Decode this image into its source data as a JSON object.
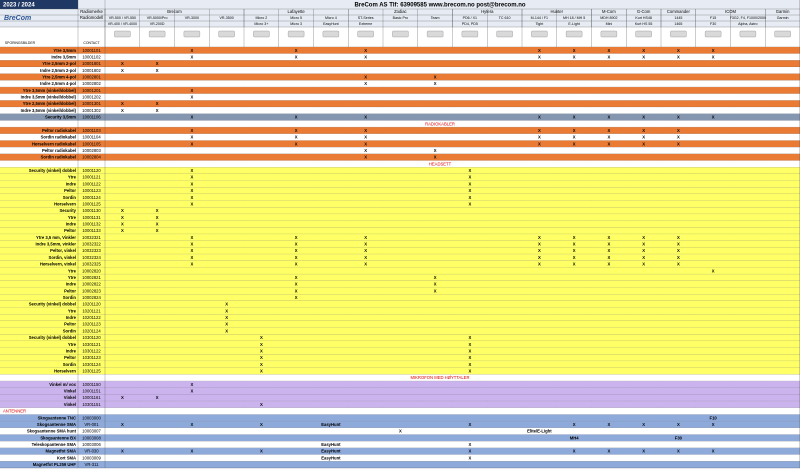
{
  "header": {
    "year": "2023 / 2024",
    "title": "BreCom AS  Tlf: 63909585  www.brecom.no  post@brecom.no",
    "brand_label": "Radiomerke",
    "model_label": "Radiomodell",
    "image_label": "SPORINGSBILDER",
    "contact_label": "CONTACT"
  },
  "brands": [
    {
      "name": "Brecom",
      "span": 4
    },
    {
      "name": "Lafayette",
      "span": 3
    },
    {
      "name": "Zodiac",
      "span": 3
    },
    {
      "name": "Hytera",
      "span": 2
    },
    {
      "name": "Hunter",
      "span": 2
    },
    {
      "name": "M-Com",
      "span": 1
    },
    {
      "name": "G-Com",
      "span": 1
    },
    {
      "name": "Commander",
      "span": 1
    },
    {
      "name": "ICOM",
      "span": 2
    },
    {
      "name": "Garmin",
      "span": 1
    }
  ],
  "models": [
    "VR-500 / VR-550",
    "VR-5000/Pro",
    "VR-3000",
    "VR-3500",
    "Micro 2",
    "Micro 5",
    "Micro 4",
    "ST-Series",
    "Basic Pro",
    "Team",
    "PD6 / X1",
    "TC 610",
    "M-144 / F1",
    "MH 18 / MH 5",
    "MDH 8902",
    "Kurt HS48",
    "1445",
    "F15",
    "F3G2, F4, F1000/2000",
    "Garmin"
  ],
  "submodels": [
    "VR-400 / VR-4000",
    "VR-200D",
    null,
    null,
    "Micro 3+",
    "Micro 3",
    "EasyHunt",
    "Extreme",
    null,
    null,
    "PD4, PD5",
    null,
    "Tight",
    "E-Light",
    "Mini",
    "Kurt HS 55",
    "1465",
    "F30",
    "Alpha, Astro",
    null
  ],
  "rows": [
    {
      "label": "Ytre 3,5mm",
      "number": "10001101",
      "color": "o",
      "cells": {
        "2": "X",
        "5": "X",
        "7": "X",
        "12": "X",
        "13": "X",
        "14": "X",
        "15": "X",
        "16": "X",
        "17": "X"
      }
    },
    {
      "label": "Indre 3,5mm",
      "number": "10001102",
      "color": "w",
      "cells": {
        "2": "X",
        "5": "X",
        "7": "X",
        "12": "X",
        "13": "X",
        "14": "X",
        "15": "X",
        "16": "X",
        "17": "X"
      }
    },
    {
      "label": "Ytre 2,5mm  2-pol",
      "number": "10001801",
      "color": "o",
      "cells": {
        "0": "X",
        "1": "X"
      }
    },
    {
      "label": "Indre 2,5mm  2-pol",
      "number": "10001802",
      "color": "w",
      "cells": {
        "0": "X",
        "1": "X"
      }
    },
    {
      "label": "Ytre 2,5mm  4-pol",
      "number": "10002801",
      "color": "o",
      "cells": {
        "7": "X",
        "9": "X"
      }
    },
    {
      "label": "Indre 2,5mm  4-pol",
      "number": "10002802",
      "color": "w",
      "cells": {
        "7": "X",
        "9": "X"
      }
    },
    {
      "label": "Ytre 3,5mm (vinkel/dobbel)",
      "number": "10001201",
      "color": "o",
      "cells": {
        "2": "X"
      }
    },
    {
      "label": "Indre 3,5mm (vinkel/dobbel)",
      "number": "10001202",
      "color": "w",
      "cells": {
        "2": "X"
      }
    },
    {
      "label": "Ytre 2,5mm (vinkel/dobbel)",
      "number": "10001301",
      "color": "o",
      "cells": {
        "0": "X",
        "1": "X"
      }
    },
    {
      "label": "Indre 3,5mm (vinkel/dobbel)",
      "number": "10001302",
      "color": "w",
      "cells": {
        "0": "X",
        "1": "X"
      }
    },
    {
      "label": "Security 3,5mm",
      "number": "10001106",
      "color": "s",
      "cells": {
        "2": "X",
        "5": "X",
        "7": "X",
        "12": "X",
        "13": "X",
        "14": "X",
        "15": "X",
        "16": "X",
        "17": "X"
      }
    },
    {
      "header": "RADIOKABLER",
      "align": "center"
    },
    {
      "label": "Peltor radiokabel",
      "number": "10001103",
      "color": "o",
      "cells": {
        "2": "X",
        "5": "X",
        "7": "X",
        "12": "X",
        "13": "X",
        "14": "X",
        "15": "X",
        "16": "X"
      }
    },
    {
      "label": "Sordin radiokabel",
      "number": "10001104",
      "color": "w",
      "cells": {
        "2": "X",
        "5": "X",
        "7": "X",
        "12": "X",
        "13": "X",
        "14": "X",
        "15": "X",
        "16": "X"
      }
    },
    {
      "label": "Hørselvern  radiokabel",
      "number": "10001105",
      "color": "o",
      "cells": {
        "2": "X",
        "5": "X",
        "7": "X",
        "12": "X",
        "13": "X",
        "14": "X",
        "15": "X",
        "16": "X"
      }
    },
    {
      "label": "Peltor radiokabel",
      "number": "10002803",
      "color": "w",
      "cells": {
        "7": "X",
        "9": "X"
      }
    },
    {
      "label": "Sordin radiokabel",
      "number": "10002804",
      "color": "o",
      "cells": {
        "7": "X",
        "9": "X"
      }
    },
    {
      "header": "HEADSETT",
      "align": "center"
    },
    {
      "label": "Security (vinkel) dobbel",
      "number": "10001120",
      "color": "y",
      "cells": {
        "2": "X",
        "10": "X"
      }
    },
    {
      "label": "Ytre",
      "number": "10001121",
      "color": "y",
      "cells": {
        "2": "X",
        "10": "X"
      }
    },
    {
      "label": "Indre",
      "number": "10001122",
      "color": "y",
      "cells": {
        "2": "X",
        "10": "X"
      }
    },
    {
      "label": "Peltor",
      "number": "10001123",
      "color": "y",
      "cells": {
        "2": "X",
        "10": "X"
      }
    },
    {
      "label": "Sordin",
      "number": "10001124",
      "color": "y",
      "cells": {
        "2": "X",
        "10": "X"
      }
    },
    {
      "label": "Hørselvern",
      "number": "10001125",
      "color": "y",
      "cells": {
        "2": "X",
        "10": "X"
      }
    },
    {
      "label": "Security",
      "number": "10001130",
      "color": "y",
      "cells": {
        "0": "X",
        "1": "X"
      }
    },
    {
      "label": "Ytre",
      "number": "10001131",
      "color": "y",
      "cells": {
        "0": "X",
        "1": "X"
      }
    },
    {
      "label": "Indre",
      "number": "10001132",
      "color": "y",
      "cells": {
        "0": "X",
        "1": "X"
      }
    },
    {
      "label": "Peltor",
      "number": "10001133",
      "color": "y",
      "cells": {
        "0": "X",
        "1": "X"
      }
    },
    {
      "label": "Ytre 3,5 mm, Vinkler",
      "number": "10032321",
      "color": "y",
      "cells": {
        "2": "X",
        "5": "X",
        "7": "X",
        "12": "X",
        "13": "X",
        "14": "X",
        "15": "X",
        "16": "X"
      }
    },
    {
      "label": "Indre 3,5mm, vinkler",
      "number": "10032322",
      "color": "y",
      "cells": {
        "2": "X",
        "5": "X",
        "7": "X",
        "12": "X",
        "13": "X",
        "14": "X",
        "15": "X",
        "16": "X"
      }
    },
    {
      "label": "Peltor, vinkel",
      "number": "10032323",
      "color": "y",
      "cells": {
        "2": "X",
        "5": "X",
        "7": "X",
        "12": "X",
        "13": "X",
        "14": "X",
        "15": "X",
        "16": "X"
      }
    },
    {
      "label": "Sordin, vinkel",
      "number": "10032324",
      "color": "y",
      "cells": {
        "2": "X",
        "5": "X",
        "7": "X",
        "12": "X",
        "13": "X",
        "14": "X",
        "15": "X",
        "16": "X"
      }
    },
    {
      "label": "Hørselvern, vinkel",
      "number": "10032325",
      "color": "y",
      "cells": {
        "2": "X",
        "5": "X",
        "7": "X",
        "12": "X",
        "13": "X",
        "14": "X",
        "15": "X",
        "16": "X"
      }
    },
    {
      "label": "Ytre",
      "number": "10002820",
      "color": "y",
      "cells": {
        "17": "X"
      }
    },
    {
      "label": "Ytre",
      "number": "10002821",
      "color": "y",
      "cells": {
        "5": "X",
        "9": "X"
      }
    },
    {
      "label": "Indre",
      "number": "10002822",
      "color": "y",
      "cells": {
        "5": "X",
        "9": "X"
      }
    },
    {
      "label": "Peltor",
      "number": "10002823",
      "color": "y",
      "cells": {
        "5": "X",
        "9": "X"
      }
    },
    {
      "label": "Sordin",
      "number": "10002824",
      "color": "y",
      "cells": {
        "5": "X"
      }
    },
    {
      "label": "Security (vinkel) dobbel",
      "number": "10201120",
      "color": "y",
      "cells": {
        "3": "X"
      }
    },
    {
      "label": "Ytre",
      "number": "10201121",
      "color": "y",
      "cells": {
        "3": "X"
      }
    },
    {
      "label": "Indre",
      "number": "10201122",
      "color": "y",
      "cells": {
        "3": "X"
      }
    },
    {
      "label": "Peltor",
      "number": "10201123",
      "color": "y",
      "cells": {
        "3": "X"
      }
    },
    {
      "label": "Sordin",
      "number": "10201124",
      "color": "y",
      "cells": {
        "3": "X"
      }
    },
    {
      "label": "Security (vinkel) dobbel",
      "number": "10301120",
      "color": "y",
      "cells": {
        "4": "X",
        "10": "X"
      }
    },
    {
      "label": "Ytre",
      "number": "10301121",
      "color": "y",
      "cells": {
        "4": "X",
        "10": "X"
      }
    },
    {
      "label": "Indre",
      "number": "10301122",
      "color": "y",
      "cells": {
        "4": "X",
        "10": "X"
      }
    },
    {
      "label": "Peltor",
      "number": "10301123",
      "color": "y",
      "cells": {
        "4": "X",
        "10": "X"
      }
    },
    {
      "label": "Sordin",
      "number": "10301124",
      "color": "y",
      "cells": {
        "4": "X",
        "10": "X"
      }
    },
    {
      "label": "Hørselvern",
      "number": "10301125",
      "color": "y",
      "cells": {
        "4": "X",
        "10": "X"
      }
    },
    {
      "header": "MIKROFON MED HØYTTALER",
      "align": "center"
    },
    {
      "label": "Vinkel m/ vox",
      "number": "10001150",
      "color": "p",
      "cells": {
        "2": "X"
      }
    },
    {
      "label": "Vinkel",
      "number": "10001151",
      "color": "p",
      "cells": {
        "2": "X"
      }
    },
    {
      "label": "Vinkel",
      "number": "10001161",
      "color": "p",
      "cells": {
        "0": "X",
        "1": "X"
      }
    },
    {
      "label": "Vinkel",
      "number": "10301151",
      "color": "p",
      "cells": {
        "4": "X"
      }
    },
    {
      "header": "ANTENNER",
      "align": "left"
    },
    {
      "label": "Skogsantenne TNC",
      "number": "10003000",
      "color": "bl",
      "cells": {
        "17": "F10"
      }
    },
    {
      "label": "Skogsantenne SMA",
      "number": "VR-001",
      "color": "bl",
      "cells": {
        "0": "X",
        "2": "X",
        "4": "X",
        "6": "EasyHunt",
        "10": "X",
        "13": "X",
        "14": "X",
        "15": "X",
        "16": "X",
        "17": "X"
      }
    },
    {
      "label": "Skogsantenne SMA hunt",
      "number": "10003007",
      "color": "w",
      "cells": {
        "8": "X",
        "12": "Elite/E-Light"
      }
    },
    {
      "label": "Skogsantenne BX",
      "number": "10003008",
      "color": "bl",
      "cells": {
        "13": "MH4",
        "16": "F30"
      }
    },
    {
      "label": "Teleskopantenne SMA",
      "number": "10003006",
      "color": "w",
      "cells": {
        "6": "EasyHunt",
        "10": "X"
      }
    },
    {
      "label": "Magnetfot SMA",
      "number": "VR-030",
      "color": "bl",
      "cells": {
        "0": "X",
        "2": "X",
        "4": "X",
        "6": "EasyHunt",
        "10": "X",
        "13": "X",
        "14": "X",
        "15": "X",
        "16": "X",
        "17": "X"
      }
    },
    {
      "label": "Kort SMA",
      "number": "10003009",
      "color": "w",
      "cells": {
        "6": "EasyHunt",
        "10": "X"
      }
    },
    {
      "label": "Magnetfot PL259 UHF",
      "number": "VR-311",
      "color": "bl",
      "cells": {}
    }
  ]
}
